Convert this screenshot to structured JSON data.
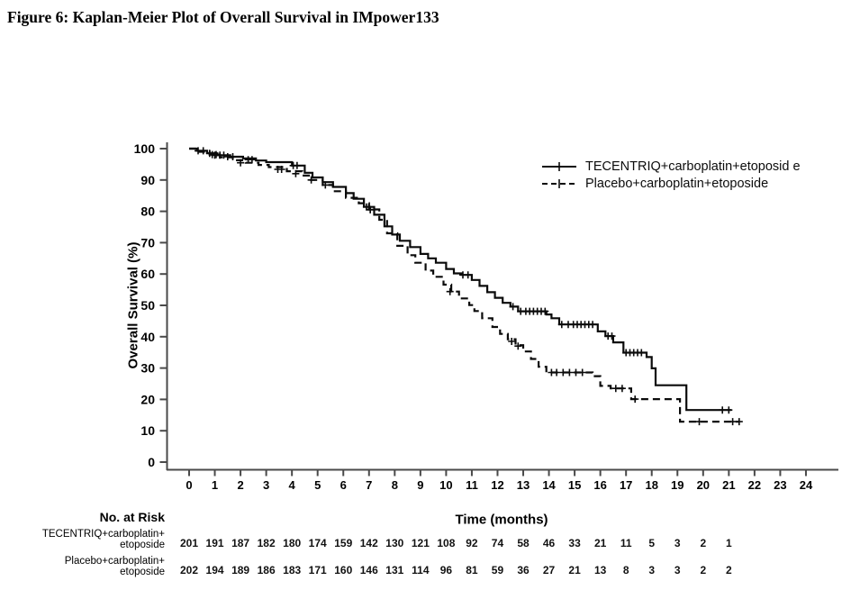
{
  "figure_title": "Figure 6: Kaplan-Meier Plot of Overall Survival in IMpower133",
  "colors": {
    "background": "#ffffff",
    "curve": "#0b0b0b",
    "axis": "#4a4a4a",
    "text": "#000000"
  },
  "chart_data": {
    "type": "line",
    "subtype": "kaplan-meier-step",
    "title": "Figure 6: Kaplan-Meier Plot of Overall Survival in IMpower133",
    "xlabel": "Time (months)",
    "ylabel": "Overall Survival (%)",
    "xlim": [
      0,
      24
    ],
    "ylim": [
      0,
      100
    ],
    "xticks": [
      0,
      1,
      2,
      3,
      4,
      5,
      6,
      7,
      8,
      9,
      10,
      11,
      12,
      13,
      14,
      15,
      16,
      17,
      18,
      19,
      20,
      21,
      22,
      23,
      24
    ],
    "yticks": [
      0,
      10,
      20,
      30,
      40,
      50,
      60,
      70,
      80,
      90,
      100
    ],
    "grid": false,
    "legend_position": "top-right",
    "series": [
      {
        "name": "TECENTRIQ+carboplatin+etoposid e",
        "line_style": "solid",
        "points": [
          [
            0,
            100
          ],
          [
            0.3,
            99.3
          ],
          [
            0.7,
            98.5
          ],
          [
            1.1,
            97.9
          ],
          [
            1.6,
            97.4
          ],
          [
            2.1,
            96.9
          ],
          [
            2.6,
            96.2
          ],
          [
            3.0,
            95.7
          ],
          [
            4.0,
            94.6
          ],
          [
            4.5,
            92.3
          ],
          [
            4.8,
            90.8
          ],
          [
            5.2,
            89.3
          ],
          [
            5.6,
            87.8
          ],
          [
            6.1,
            85.8
          ],
          [
            6.4,
            84.0
          ],
          [
            6.8,
            81.4
          ],
          [
            7.2,
            78.9
          ],
          [
            7.6,
            75.2
          ],
          [
            7.9,
            72.6
          ],
          [
            8.2,
            70.6
          ],
          [
            8.6,
            68.6
          ],
          [
            9.0,
            66.4
          ],
          [
            9.3,
            65.0
          ],
          [
            9.6,
            63.6
          ],
          [
            10.0,
            61.6
          ],
          [
            10.3,
            60.2
          ],
          [
            10.6,
            59.7
          ],
          [
            11.0,
            58.1
          ],
          [
            11.3,
            56.2
          ],
          [
            11.6,
            54.2
          ],
          [
            11.9,
            52.4
          ],
          [
            12.2,
            50.8
          ],
          [
            12.5,
            49.6
          ],
          [
            12.8,
            48.1
          ],
          [
            13.9,
            47.1
          ],
          [
            14.1,
            45.9
          ],
          [
            14.4,
            43.9
          ],
          [
            15.9,
            41.7
          ],
          [
            16.2,
            40.2
          ],
          [
            16.5,
            38.2
          ],
          [
            16.9,
            34.9
          ],
          [
            17.8,
            33.5
          ],
          [
            18.0,
            29.9
          ],
          [
            18.15,
            24.5
          ],
          [
            19.35,
            16.6
          ],
          [
            21.1,
            16.6
          ]
        ],
        "censor_marks": [
          [
            0.35,
            99.3
          ],
          [
            0.55,
            99.3
          ],
          [
            0.8,
            98.5
          ],
          [
            1.0,
            97.9
          ],
          [
            1.2,
            97.9
          ],
          [
            1.35,
            97.9
          ],
          [
            1.5,
            97.4
          ],
          [
            1.7,
            97.4
          ],
          [
            2.3,
            96.5
          ],
          [
            2.45,
            96.5
          ],
          [
            4.05,
            94.6
          ],
          [
            4.2,
            94.6
          ],
          [
            6.9,
            81.4
          ],
          [
            7.05,
            80.5
          ],
          [
            10.65,
            59.7
          ],
          [
            10.85,
            59.7
          ],
          [
            12.6,
            49.6
          ],
          [
            12.9,
            48.1
          ],
          [
            13.1,
            48.1
          ],
          [
            13.25,
            48.1
          ],
          [
            13.4,
            48.1
          ],
          [
            13.55,
            48.1
          ],
          [
            13.7,
            48.1
          ],
          [
            13.85,
            48.1
          ],
          [
            14.5,
            43.9
          ],
          [
            14.75,
            43.9
          ],
          [
            14.95,
            43.9
          ],
          [
            15.1,
            43.9
          ],
          [
            15.25,
            43.9
          ],
          [
            15.4,
            43.9
          ],
          [
            15.55,
            43.9
          ],
          [
            15.7,
            43.9
          ],
          [
            16.3,
            40.2
          ],
          [
            16.45,
            40.2
          ],
          [
            17.0,
            34.9
          ],
          [
            17.15,
            34.9
          ],
          [
            17.3,
            34.9
          ],
          [
            17.45,
            34.9
          ],
          [
            17.6,
            34.9
          ],
          [
            20.75,
            16.6
          ],
          [
            21.0,
            16.6
          ]
        ]
      },
      {
        "name": "Placebo+carboplatin+etoposide",
        "line_style": "dashed",
        "points": [
          [
            0,
            100
          ],
          [
            0.4,
            99.0
          ],
          [
            0.8,
            98.1
          ],
          [
            1.2,
            97.2
          ],
          [
            1.7,
            96.3
          ],
          [
            2.2,
            95.5
          ],
          [
            2.7,
            94.8
          ],
          [
            3.1,
            94.1
          ],
          [
            3.8,
            92.8
          ],
          [
            4.4,
            91.4
          ],
          [
            4.7,
            90.0
          ],
          [
            5.2,
            88.4
          ],
          [
            5.6,
            86.4
          ],
          [
            6.1,
            84.3
          ],
          [
            6.6,
            82.6
          ],
          [
            7.0,
            80.6
          ],
          [
            7.4,
            77.3
          ],
          [
            7.7,
            73.0
          ],
          [
            8.1,
            69.0
          ],
          [
            8.5,
            66.0
          ],
          [
            8.8,
            63.6
          ],
          [
            9.2,
            61.1
          ],
          [
            9.5,
            59.1
          ],
          [
            9.9,
            56.6
          ],
          [
            10.2,
            54.4
          ],
          [
            10.5,
            52.2
          ],
          [
            10.9,
            50.1
          ],
          [
            11.1,
            48.2
          ],
          [
            11.4,
            45.9
          ],
          [
            11.8,
            43.1
          ],
          [
            12.1,
            40.9
          ],
          [
            12.4,
            39.2
          ],
          [
            12.7,
            37.3
          ],
          [
            13.0,
            35.3
          ],
          [
            13.3,
            32.9
          ],
          [
            13.6,
            30.4
          ],
          [
            13.9,
            28.6
          ],
          [
            15.7,
            27.4
          ],
          [
            16.0,
            24.3
          ],
          [
            16.4,
            23.5
          ],
          [
            17.2,
            20.1
          ],
          [
            19.1,
            12.9
          ],
          [
            21.4,
            12.9
          ]
        ],
        "censor_marks": [
          [
            0.9,
            98.1
          ],
          [
            1.05,
            98.1
          ],
          [
            2.0,
            95.5
          ],
          [
            3.45,
            93.4
          ],
          [
            3.6,
            93.4
          ],
          [
            4.15,
            92.0
          ],
          [
            4.75,
            90.0
          ],
          [
            5.3,
            88.4
          ],
          [
            7.05,
            80.6
          ],
          [
            10.15,
            54.4
          ],
          [
            12.55,
            38.5
          ],
          [
            12.8,
            37.0
          ],
          [
            14.1,
            28.6
          ],
          [
            14.3,
            28.6
          ],
          [
            14.55,
            28.6
          ],
          [
            14.8,
            28.6
          ],
          [
            15.05,
            28.6
          ],
          [
            15.3,
            28.6
          ],
          [
            16.6,
            23.5
          ],
          [
            16.85,
            23.5
          ],
          [
            17.35,
            20.1
          ],
          [
            19.85,
            12.9
          ],
          [
            21.15,
            12.9
          ],
          [
            21.4,
            12.9
          ]
        ]
      }
    ],
    "risk_table": {
      "title": "No. at Risk",
      "months": [
        0,
        1,
        2,
        3,
        4,
        5,
        6,
        7,
        8,
        9,
        10,
        11,
        12,
        13,
        14,
        15,
        16,
        17,
        18,
        19,
        20,
        21
      ],
      "rows": [
        {
          "label_line1": "TECENTRIQ+carboplatin+",
          "label_line2": "etoposide",
          "counts": [
            201,
            191,
            187,
            182,
            180,
            174,
            159,
            142,
            130,
            121,
            108,
            92,
            74,
            58,
            46,
            33,
            21,
            11,
            5,
            3,
            2,
            1
          ]
        },
        {
          "label_line1": "Placebo+carboplatin+",
          "label_line2": "etoposide",
          "counts": [
            202,
            194,
            189,
            186,
            183,
            171,
            160,
            146,
            131,
            114,
            96,
            81,
            59,
            36,
            27,
            21,
            13,
            8,
            3,
            3,
            2,
            2
          ]
        }
      ]
    }
  }
}
